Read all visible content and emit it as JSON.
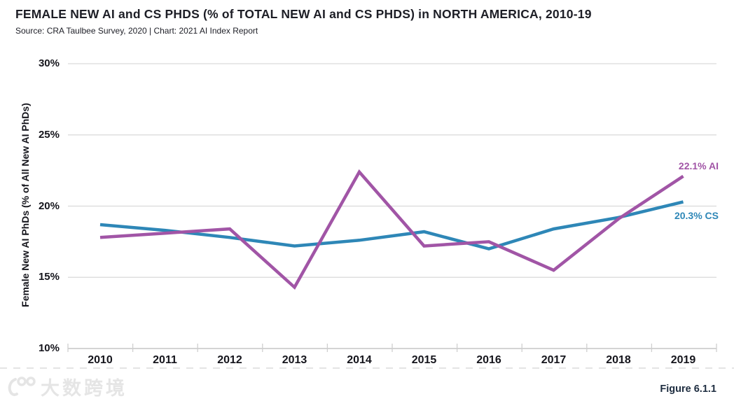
{
  "header": {
    "title": "FEMALE NEW AI and CS PHDS (% of TOTAL NEW AI and CS PHDS) in NORTH AMERICA, 2010-19",
    "source_line": "Source: CRA Taulbee Survey, 2020 | Chart: 2021 AI Index Report"
  },
  "chart_data": {
    "type": "line",
    "title": "FEMALE NEW AI and CS PHDS (% of TOTAL NEW AI and CS PHDS) in NORTH AMERICA, 2010-19",
    "x": [
      "2010",
      "2011",
      "2012",
      "2013",
      "2014",
      "2015",
      "2016",
      "2017",
      "2018",
      "2019"
    ],
    "series": [
      {
        "name": "AI",
        "color": "#a155a6",
        "values": [
          17.8,
          18.1,
          18.4,
          14.3,
          22.4,
          17.2,
          17.5,
          15.5,
          19.1,
          22.1
        ],
        "end_label": "22.1% AI"
      },
      {
        "name": "CS",
        "color": "#2e87b7",
        "values": [
          18.7,
          18.3,
          17.8,
          17.2,
          17.6,
          18.2,
          17.0,
          18.4,
          19.2,
          20.3
        ],
        "end_label": "20.3% CS"
      }
    ],
    "xlabel": "",
    "ylabel": "Female New AI PhDs (% of All New AI PhDs)",
    "ylim": [
      10,
      30
    ],
    "yticks": [
      "30%",
      "25%",
      "20%",
      "15%",
      "10%"
    ],
    "grid": true,
    "legend_position": "line-end labels (right side)"
  },
  "footer": {
    "figure_label": "Figure 6.1.1",
    "watermark_text": "大数跨境"
  }
}
